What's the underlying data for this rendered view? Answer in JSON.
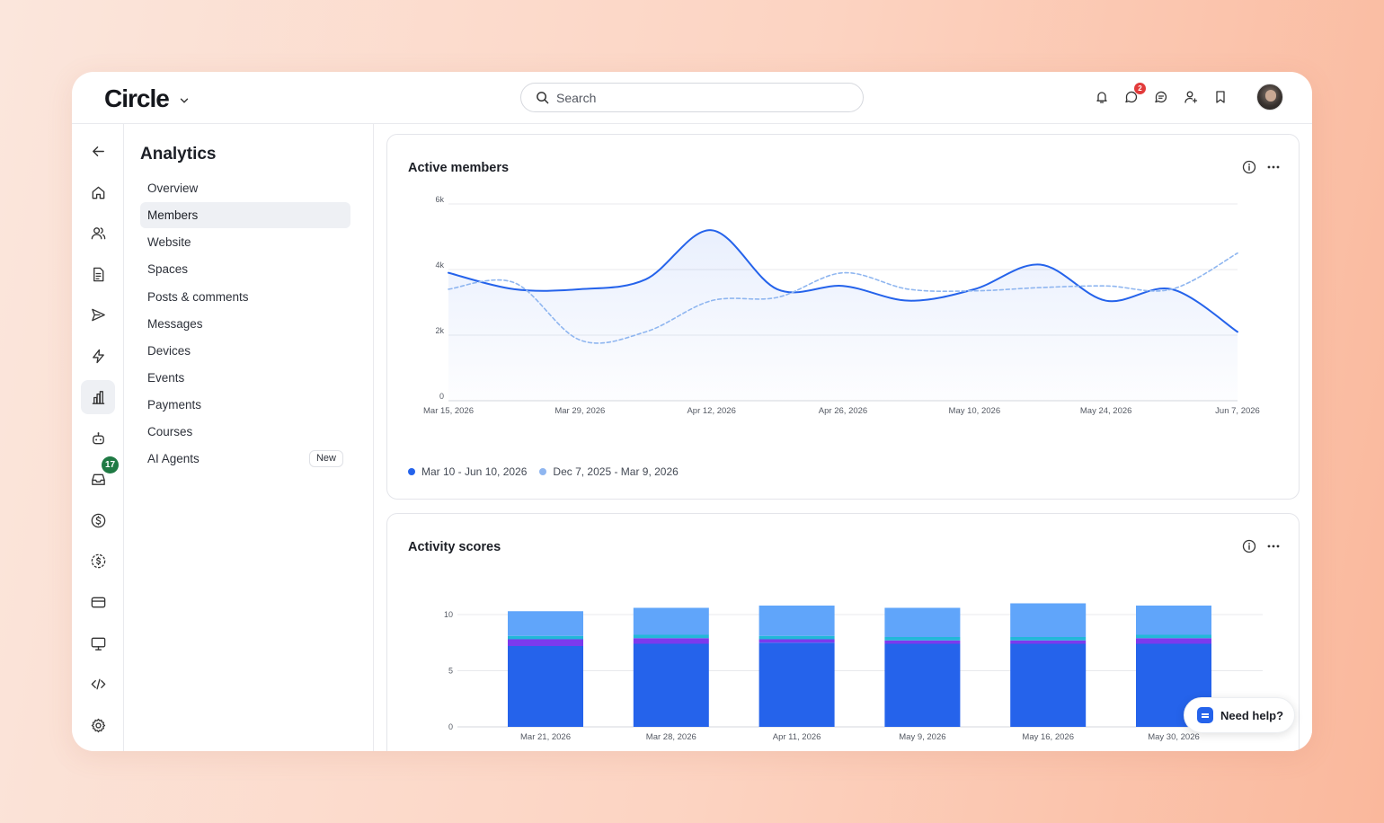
{
  "app": {
    "name": "Circle"
  },
  "search": {
    "placeholder": "Search"
  },
  "header": {
    "icons": [
      "bell-icon",
      "chat-bubble-icon",
      "message-icon",
      "add-user-icon",
      "bookmark-icon"
    ],
    "chat_badge": "2"
  },
  "rail": {
    "icons": [
      "back-arrow-icon",
      "home-icon",
      "members-icon",
      "document-icon",
      "send-icon",
      "lightning-icon",
      "analytics-icon",
      "bot-icon",
      "inbox-icon",
      "dollar-icon",
      "paywall-icon",
      "card-icon",
      "monitor-icon",
      "code-icon",
      "gear-icon"
    ],
    "inbox_badge": "17"
  },
  "subnav": {
    "title": "Analytics",
    "items": [
      {
        "label": "Overview"
      },
      {
        "label": "Members",
        "active": true
      },
      {
        "label": "Website"
      },
      {
        "label": "Spaces"
      },
      {
        "label": "Posts & comments"
      },
      {
        "label": "Messages"
      },
      {
        "label": "Devices"
      },
      {
        "label": "Events"
      },
      {
        "label": "Payments"
      },
      {
        "label": "Courses"
      },
      {
        "label": "AI Agents",
        "badge": "New"
      }
    ]
  },
  "cards": {
    "active_members": {
      "title": "Active members"
    },
    "activity_scores": {
      "title": "Activity scores"
    }
  },
  "help": {
    "label": "Need help?"
  },
  "colors": {
    "primary": "#2563eb",
    "secondary": "#8fb6f0",
    "bar_top": "#60a5fa",
    "bar_cyan": "#22b8d8",
    "bar_purple": "#7c3aed"
  },
  "chart_data": [
    {
      "type": "line",
      "title": "Active members",
      "x_tick_labels": [
        "Mar 15, 2026",
        "Mar 29, 2026",
        "Apr 12, 2026",
        "Apr 26, 2026",
        "May 10, 2026",
        "May 24, 2026",
        "Jun 7, 2026"
      ],
      "y_tick_labels": [
        "0",
        "2k",
        "4k",
        "6k"
      ],
      "ylim": [
        0,
        6000
      ],
      "grid": true,
      "legend": "bottom-left",
      "series": [
        {
          "name": "Mar 10 - Jun 10, 2026",
          "style": "solid",
          "color": "#2563eb",
          "x": [
            "Mar 15, 2026",
            "Mar 22, 2026",
            "Mar 29, 2026",
            "Apr 5, 2026",
            "Apr 12, 2026",
            "Apr 19, 2026",
            "Apr 26, 2026",
            "May 3, 2026",
            "May 10, 2026",
            "May 17, 2026",
            "May 24, 2026",
            "May 31, 2026",
            "Jun 7, 2026"
          ],
          "values": [
            3900,
            3400,
            3400,
            3700,
            5200,
            3400,
            3500,
            3050,
            3400,
            4150,
            3050,
            3400,
            2100
          ]
        },
        {
          "name": "Dec 7, 2025 - Mar 9, 2026",
          "style": "dashed",
          "color": "#8fb6f0",
          "x": [
            "Mar 15, 2026",
            "Mar 22, 2026",
            "Mar 29, 2026",
            "Apr 5, 2026",
            "Apr 12, 2026",
            "Apr 19, 2026",
            "Apr 26, 2026",
            "May 3, 2026",
            "May 10, 2026",
            "May 17, 2026",
            "May 24, 2026",
            "May 31, 2026",
            "Jun 7, 2026"
          ],
          "values": [
            3400,
            3600,
            1850,
            2100,
            3050,
            3150,
            3900,
            3400,
            3350,
            3450,
            3500,
            3400,
            4500
          ]
        }
      ]
    },
    {
      "type": "bar",
      "title": "Activity scores",
      "stacked": true,
      "categories": [
        "Mar 21, 2026",
        "Mar 28, 2026",
        "Apr 11, 2026",
        "May 9, 2026",
        "May 16, 2026",
        "May 30, 2026"
      ],
      "y_tick_labels": [
        "0",
        "5",
        "10"
      ],
      "ylim": [
        0,
        10
      ],
      "grid": true,
      "series": [
        {
          "color": "#2563eb",
          "values": [
            7.2,
            7.4,
            7.5,
            7.4,
            7.4,
            7.4
          ]
        },
        {
          "color": "#7c3aed",
          "values": [
            0.6,
            0.5,
            0.3,
            0.3,
            0.3,
            0.5
          ]
        },
        {
          "color": "#22b8d8",
          "values": [
            0.3,
            0.3,
            0.3,
            0.3,
            0.3,
            0.3
          ]
        },
        {
          "color": "#60a5fa",
          "values": [
            2.2,
            2.4,
            2.7,
            2.6,
            3.0,
            2.6
          ]
        }
      ]
    }
  ]
}
